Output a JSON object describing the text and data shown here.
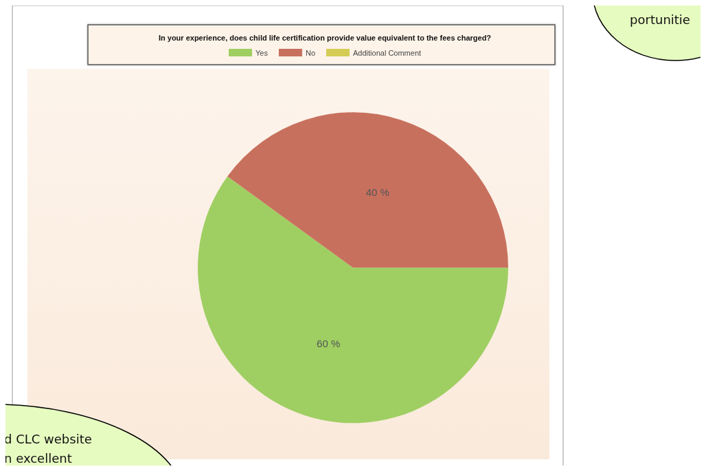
{
  "chart_data": {
    "type": "pie",
    "title": "In your experience, does child life certification provide value equivalent to the fees charged?",
    "categories": [
      "Yes",
      "No",
      "Additional Comment"
    ],
    "values": [
      60,
      40,
      0
    ],
    "colors": [
      "#9fcf62",
      "#c8705e",
      "#d4cc55"
    ],
    "value_labels": [
      "60 %",
      "40 %",
      null
    ],
    "legend": "top",
    "annotations": [
      "portunitie",
      "d CLC website",
      "n excellent"
    ]
  }
}
